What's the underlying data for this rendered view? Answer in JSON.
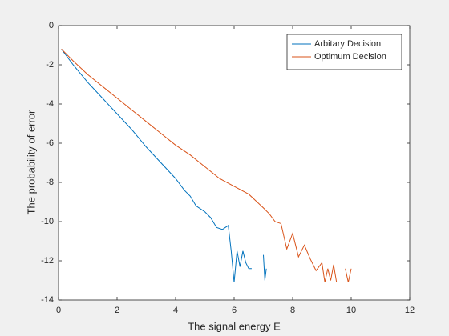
{
  "chart_data": {
    "type": "line",
    "xlabel": "The signal energy E",
    "ylabel": "The probability of error",
    "xlim": [
      0,
      12
    ],
    "xticks": [
      0,
      2,
      4,
      6,
      8,
      10,
      12
    ],
    "ylim": [
      -14,
      0
    ],
    "yticks": [
      -14,
      -12,
      -10,
      -8,
      -6,
      -4,
      -2,
      0
    ],
    "legend": "northeast",
    "series": [
      {
        "name": "Arbitary Decision",
        "color": "#0072bd",
        "x": [
          0.1,
          0.5,
          1,
          1.5,
          2,
          2.5,
          3,
          3.5,
          4,
          4.3,
          4.5,
          4.7,
          5,
          5.2,
          5.4,
          5.6,
          5.8,
          5.9,
          6.0,
          6.1,
          6.2,
          6.3,
          6.4,
          6.5,
          6.6,
          6.8,
          7.0,
          7.05,
          7.1
        ],
        "values": [
          -1.2,
          -2.0,
          -2.9,
          -3.7,
          -4.5,
          -5.3,
          -6.2,
          -7.0,
          -7.8,
          -8.4,
          -8.7,
          -9.2,
          -9.5,
          -9.8,
          -10.3,
          -10.4,
          -10.2,
          -11.5,
          -13.1,
          -11.5,
          -12.3,
          -11.5,
          -12.1,
          -12.4,
          -12.4,
          null,
          -11.7,
          -13.0,
          -12.4
        ]
      },
      {
        "name": "Optimum Decision",
        "color": "#d95319",
        "x": [
          0.1,
          0.5,
          1,
          1.5,
          2,
          2.5,
          3,
          3.5,
          4,
          4.5,
          5,
          5.5,
          6,
          6.5,
          7,
          7.2,
          7.4,
          7.6,
          7.8,
          8.0,
          8.2,
          8.4,
          8.6,
          8.8,
          9.0,
          9.1,
          9.2,
          9.3,
          9.4,
          9.5,
          9.6,
          9.8,
          9.9,
          10.0
        ],
        "values": [
          -1.2,
          -1.8,
          -2.5,
          -3.1,
          -3.7,
          -4.3,
          -4.9,
          -5.5,
          -6.1,
          -6.6,
          -7.2,
          -7.8,
          -8.2,
          -8.6,
          -9.3,
          -9.6,
          -10.0,
          -10.1,
          -11.4,
          -10.6,
          -11.8,
          -11.2,
          -11.9,
          -12.5,
          -12.1,
          -13.1,
          -12.4,
          -13.0,
          -12.2,
          -13.1,
          null,
          -12.4,
          -13.1,
          -12.4
        ]
      }
    ]
  }
}
